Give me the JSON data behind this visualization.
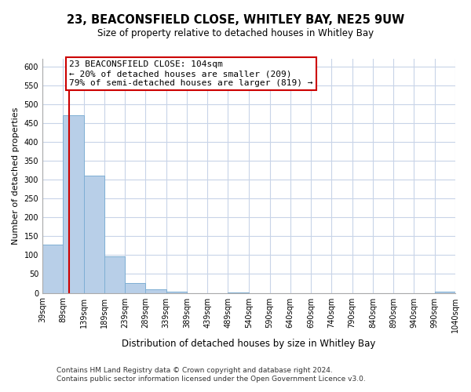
{
  "title": "23, BEACONSFIELD CLOSE, WHITLEY BAY, NE25 9UW",
  "subtitle": "Size of property relative to detached houses in Whitley Bay",
  "xlabel": "Distribution of detached houses by size in Whitley Bay",
  "ylabel": "Number of detached properties",
  "bar_heights": [
    128,
    470,
    311,
    96,
    27,
    10,
    3,
    0,
    0,
    2,
    0,
    0,
    0,
    0,
    0,
    0,
    0,
    0,
    0,
    3
  ],
  "bin_edges": [
    39,
    89,
    139,
    189,
    239,
    289,
    339,
    389,
    439,
    489,
    540,
    590,
    640,
    690,
    740,
    790,
    840,
    890,
    940,
    990,
    1040
  ],
  "tick_labels": [
    "39sqm",
    "89sqm",
    "139sqm",
    "189sqm",
    "239sqm",
    "289sqm",
    "339sqm",
    "389sqm",
    "439sqm",
    "489sqm",
    "540sqm",
    "590sqm",
    "640sqm",
    "690sqm",
    "740sqm",
    "790sqm",
    "840sqm",
    "890sqm",
    "940sqm",
    "990sqm",
    "1040sqm"
  ],
  "bar_color": "#b8cfe8",
  "bar_edge_color": "#7fafd4",
  "redline_color": "#cc0000",
  "redline_x": 104,
  "ylim": [
    0,
    620
  ],
  "yticks": [
    0,
    50,
    100,
    150,
    200,
    250,
    300,
    350,
    400,
    450,
    500,
    550,
    600
  ],
  "annotation_title": "23 BEACONSFIELD CLOSE: 104sqm",
  "annotation_line1": "← 20% of detached houses are smaller (209)",
  "annotation_line2": "79% of semi-detached houses are larger (819) →",
  "footer1": "Contains HM Land Registry data © Crown copyright and database right 2024.",
  "footer2": "Contains public sector information licensed under the Open Government Licence v3.0.",
  "background_color": "#ffffff",
  "grid_color": "#c8d4e8",
  "title_fontsize": 10.5,
  "subtitle_fontsize": 8.5,
  "ylabel_fontsize": 8,
  "xlabel_fontsize": 8.5,
  "tick_fontsize": 7,
  "annot_fontsize": 8,
  "footer_fontsize": 6.5
}
